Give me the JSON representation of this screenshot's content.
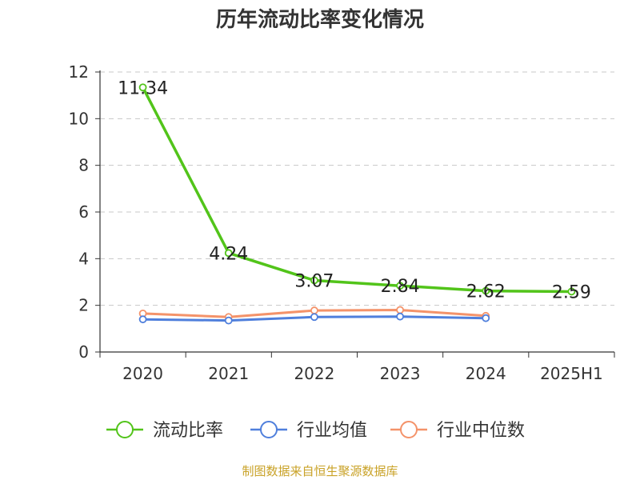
{
  "chart_data": {
    "type": "line",
    "title": "历年流动比率变化情况",
    "categories": [
      "2020",
      "2021",
      "2022",
      "2023",
      "2024",
      "2025H1"
    ],
    "ylim": [
      0,
      12
    ],
    "yticks": [
      0,
      2,
      4,
      6,
      8,
      10,
      12
    ],
    "grid": true,
    "legend_position": "bottom",
    "series": [
      {
        "name": "流动比率",
        "color": "#52c41a",
        "values": [
          11.34,
          4.24,
          3.07,
          2.84,
          2.62,
          2.59
        ],
        "labels": [
          "11.34",
          "4.24",
          "3.07",
          "2.84",
          "2.62",
          "2.59"
        ]
      },
      {
        "name": "行业均值",
        "color": "#4f7fdc",
        "values": [
          1.4,
          1.35,
          1.5,
          1.52,
          1.45,
          null
        ]
      },
      {
        "name": "行业中位数",
        "color": "#f4936a",
        "values": [
          1.65,
          1.5,
          1.78,
          1.8,
          1.55,
          null
        ]
      }
    ]
  },
  "footer": {
    "source": "制图数据来自恒生聚源数据库"
  }
}
